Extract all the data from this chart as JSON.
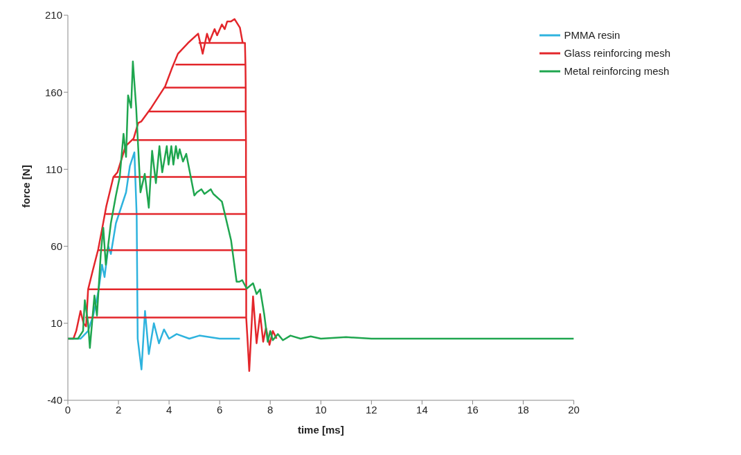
{
  "chart_data": {
    "type": "line",
    "xlabel": "time [ms]",
    "ylabel": "force [N]",
    "xlim": [
      0,
      20
    ],
    "xticks": [
      0,
      2,
      4,
      6,
      8,
      10,
      12,
      14,
      16,
      18,
      20
    ],
    "ylim": [
      -40,
      210
    ],
    "yticks": [
      -40,
      10,
      60,
      110,
      160,
      210
    ],
    "legend": "top right",
    "marker": "none",
    "line_style": "solid",
    "series": [
      {
        "name": "PMMA resin",
        "color": "#2eb3de",
        "x": [
          0,
          0.5,
          0.8,
          1.0,
          1.2,
          1.35,
          1.45,
          1.6,
          1.7,
          1.9,
          2.1,
          2.3,
          2.45,
          2.63,
          2.72,
          2.76,
          2.91,
          3.05,
          3.2,
          3.4,
          3.6,
          3.8,
          4.0,
          4.3,
          4.8,
          5.2,
          6.0,
          6.8
        ],
        "values": [
          0,
          0,
          5,
          15,
          30,
          48,
          40,
          60,
          55,
          75,
          85,
          95,
          112,
          121,
          80,
          0,
          -20,
          18,
          -10,
          10,
          -3,
          6,
          0,
          3,
          0,
          2,
          0,
          0
        ]
      },
      {
        "name": "Glass reinforcing mesh",
        "color": "#e3262b",
        "x": [
          0,
          0.22,
          0.33,
          0.5,
          0.62,
          0.72,
          0.8,
          0.98,
          1.2,
          1.35,
          1.52,
          1.8,
          1.96,
          2.28,
          2.6,
          2.78,
          2.9,
          3.3,
          3.85,
          4.1,
          4.35,
          4.75,
          5.15,
          5.33,
          5.5,
          5.6,
          5.8,
          5.9,
          6.09,
          6.2,
          6.3,
          6.45,
          6.59,
          6.8,
          6.91,
          7.0,
          5.2,
          7.0,
          7.02,
          4.28,
          7.02,
          7.03,
          3.85,
          7.03,
          7.03,
          3.2,
          7.03,
          7.04,
          2.6,
          7.04,
          7.04,
          1.85,
          7.04,
          7.05,
          1.52,
          7.05,
          7.05,
          1.2,
          7.05,
          7.05,
          0.8,
          7.05,
          7.05,
          0.72,
          7.05,
          7.1,
          7.17,
          7.32,
          7.46,
          7.6,
          7.72,
          7.83,
          7.97,
          8.1,
          8.25
        ],
        "values": [
          0,
          0,
          5,
          18,
          10,
          8,
          32,
          44,
          58,
          71,
          86,
          105,
          108,
          125,
          130,
          140,
          141,
          150,
          164,
          175,
          185,
          192,
          198,
          185,
          198,
          193,
          201,
          197,
          204,
          201,
          206,
          206,
          207.5,
          202,
          192,
          192,
          192,
          192,
          178,
          178,
          178,
          163,
          163,
          163,
          147.5,
          147.5,
          147.5,
          129,
          129,
          129,
          105,
          105,
          105,
          81,
          81,
          81,
          57.5,
          57.5,
          57.5,
          32,
          32,
          32,
          13.7,
          13.7,
          13.7,
          0,
          -21,
          27.5,
          -3,
          16,
          -2,
          7,
          -4,
          5,
          0
        ]
      },
      {
        "name": "Metal reinforcing mesh",
        "color": "#1fa64f",
        "x": [
          0,
          0.4,
          0.6,
          0.67,
          0.8,
          0.87,
          1.05,
          1.15,
          1.3,
          1.4,
          1.5,
          1.7,
          1.9,
          2.05,
          2.2,
          2.3,
          2.38,
          2.5,
          2.57,
          2.7,
          2.87,
          3.04,
          3.2,
          3.33,
          3.48,
          3.62,
          3.73,
          3.91,
          3.98,
          4.09,
          4.17,
          4.27,
          4.35,
          4.42,
          4.55,
          4.68,
          5.0,
          5.1,
          5.28,
          5.4,
          5.65,
          5.75,
          6.09,
          6.45,
          6.67,
          6.78,
          6.89,
          7.07,
          7.32,
          7.46,
          7.6,
          7.76,
          7.9,
          8.0,
          8.1,
          8.3,
          8.5,
          8.8,
          9.2,
          9.6,
          10,
          11,
          12,
          20
        ],
        "values": [
          0,
          0,
          5,
          25,
          10,
          -6,
          28,
          15,
          55,
          72,
          48,
          75,
          93,
          105,
          133,
          118,
          158,
          150,
          180,
          150,
          95,
          107,
          85,
          122,
          101,
          125,
          108,
          125,
          113,
          125,
          113,
          125,
          117,
          123,
          115,
          120,
          93,
          95,
          97,
          94,
          97,
          94,
          89,
          64,
          37,
          37,
          38,
          32.5,
          36,
          29,
          32,
          16,
          -2,
          5,
          -1,
          3,
          -1,
          2,
          0,
          1.5,
          0,
          1,
          0,
          0
        ]
      }
    ]
  }
}
